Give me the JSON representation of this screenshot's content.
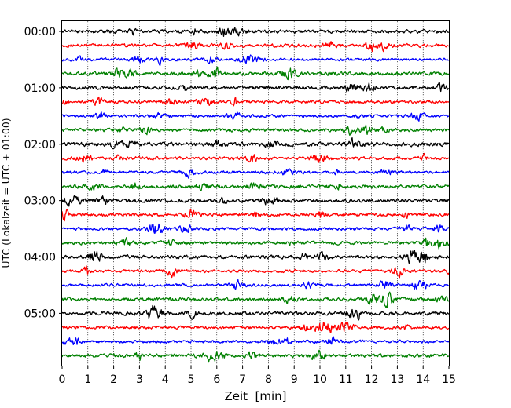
{
  "chart_data": {
    "type": "line",
    "title": "",
    "xlabel": "Zeit  [min]",
    "ylabel": "UTC (Lokalzeit = UTC + 01:00)",
    "xlim": [
      0,
      15
    ],
    "x_ticks": [
      0,
      1,
      2,
      3,
      4,
      5,
      6,
      7,
      8,
      9,
      10,
      11,
      12,
      13,
      14,
      15
    ],
    "x_tick_labels": [
      "0",
      "1",
      "2",
      "3",
      "4",
      "5",
      "6",
      "7",
      "8",
      "9",
      "10",
      "11",
      "12",
      "13",
      "14",
      "15"
    ],
    "y_tick_labels": [
      "00:00",
      "01:00",
      "02:00",
      "03:00",
      "04:00",
      "05:00"
    ],
    "grid": "x-only, dotted",
    "legend": "none",
    "trace_colors_cycle": [
      "#000000",
      "#ff0000",
      "#0000ff",
      "#008000"
    ],
    "trace_interval_minutes": 15,
    "trace_start_times": [
      "00:00",
      "00:15",
      "00:30",
      "00:45",
      "01:00",
      "01:15",
      "01:30",
      "01:45",
      "02:00",
      "02:15",
      "02:30",
      "02:45",
      "03:00",
      "03:15",
      "03:30",
      "03:45",
      "04:00",
      "04:15",
      "04:30",
      "04:45",
      "05:00",
      "05:15",
      "05:30",
      "05:45"
    ],
    "series": [
      {
        "start": "00:00",
        "color": "#000000",
        "amplitude": 0.3
      },
      {
        "start": "00:15",
        "color": "#ff0000",
        "amplitude": 0.3
      },
      {
        "start": "00:30",
        "color": "#0000ff",
        "amplitude": 0.26
      },
      {
        "start": "00:45",
        "color": "#008000",
        "amplitude": 0.32
      },
      {
        "start": "01:00",
        "color": "#000000",
        "amplitude": 0.3
      },
      {
        "start": "01:15",
        "color": "#ff0000",
        "amplitude": 0.26
      },
      {
        "start": "01:30",
        "color": "#0000ff",
        "amplitude": 0.26
      },
      {
        "start": "01:45",
        "color": "#008000",
        "amplitude": 0.3
      },
      {
        "start": "02:00",
        "color": "#000000",
        "amplitude": 0.36
      },
      {
        "start": "02:15",
        "color": "#ff0000",
        "amplitude": 0.28
      },
      {
        "start": "02:30",
        "color": "#0000ff",
        "amplitude": 0.26
      },
      {
        "start": "02:45",
        "color": "#008000",
        "amplitude": 0.32
      },
      {
        "start": "03:00",
        "color": "#000000",
        "amplitude": 0.3
      },
      {
        "start": "03:15",
        "color": "#ff0000",
        "amplitude": 0.28
      },
      {
        "start": "03:30",
        "color": "#0000ff",
        "amplitude": 0.28
      },
      {
        "start": "03:45",
        "color": "#008000",
        "amplitude": 0.3
      },
      {
        "start": "04:00",
        "color": "#000000",
        "amplitude": 0.32
      },
      {
        "start": "04:15",
        "color": "#ff0000",
        "amplitude": 0.26
      },
      {
        "start": "04:30",
        "color": "#0000ff",
        "amplitude": 0.26
      },
      {
        "start": "04:45",
        "color": "#008000",
        "amplitude": 0.3
      },
      {
        "start": "05:00",
        "color": "#000000",
        "amplitude": 0.3
      },
      {
        "start": "05:15",
        "color": "#ff0000",
        "amplitude": 0.28
      },
      {
        "start": "05:30",
        "color": "#0000ff",
        "amplitude": 0.26
      },
      {
        "start": "05:45",
        "color": "#008000",
        "amplitude": 0.32
      }
    ]
  }
}
